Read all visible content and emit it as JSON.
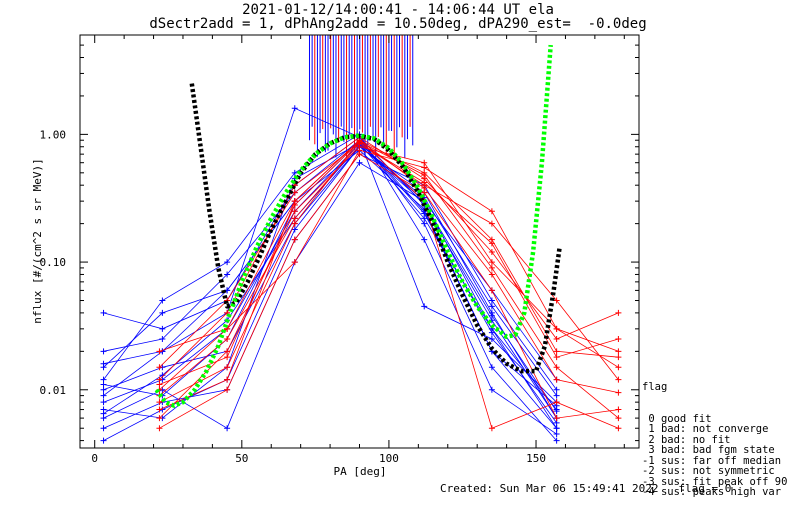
{
  "header": {
    "title_line1": "2021-01-12/14:00:41 - 14:06:44 UT ela",
    "title_line2": "dSectr2add = 1, dPhAng2add = 10.50deg, dPA290_est=  -0.0deg"
  },
  "chart_data": {
    "type": "line",
    "xlabel": "PA [deg]",
    "ylabel": "nflux [#/(cm^2 s sr MeV)]",
    "xlim": [
      -5,
      185
    ],
    "ylim": [
      0.0035,
      6
    ],
    "yscale": "log",
    "xticks": [
      0,
      50,
      100,
      150
    ],
    "yticks": [
      0.01,
      0.1,
      1.0
    ],
    "ytick_labels": [
      "0.01",
      "0.10",
      "1.00"
    ],
    "colors": {
      "blue": "#0000ff",
      "red": "#ff0000",
      "fit_black": "#000000",
      "fit_green": "#00ff00"
    },
    "series": [
      {
        "color": "blue",
        "x": [
          3,
          23,
          45,
          68,
          90,
          112,
          135,
          157
        ],
        "y": [
          0.016,
          0.02,
          0.06,
          0.3,
          0.9,
          0.25,
          0.02,
          0.005
        ]
      },
      {
        "color": "blue",
        "x": [
          3,
          23,
          45,
          68,
          90,
          112,
          135,
          157
        ],
        "y": [
          0.008,
          0.012,
          0.03,
          0.25,
          0.85,
          0.3,
          0.03,
          0.007
        ]
      },
      {
        "color": "blue",
        "x": [
          3,
          23,
          45,
          68,
          90,
          112,
          135,
          157
        ],
        "y": [
          0.04,
          0.03,
          0.05,
          0.4,
          0.95,
          0.2,
          0.015,
          0.004
        ]
      },
      {
        "color": "blue",
        "x": [
          3,
          23,
          45,
          68,
          90,
          112,
          135,
          157
        ],
        "y": [
          0.005,
          0.008,
          0.01,
          0.15,
          0.7,
          0.4,
          0.05,
          0.01
        ]
      },
      {
        "color": "blue",
        "x": [
          3,
          23,
          45,
          68,
          90,
          112,
          135,
          157
        ],
        "y": [
          0.01,
          0.015,
          0.02,
          0.2,
          0.8,
          0.35,
          0.04,
          0.006
        ]
      },
      {
        "color": "blue",
        "x": [
          3,
          23,
          45,
          68,
          90,
          112,
          135,
          157
        ],
        "y": [
          0.012,
          0.05,
          0.1,
          0.5,
          1.0,
          0.15,
          0.01,
          0.0045
        ]
      },
      {
        "color": "blue",
        "x": [
          3,
          23,
          45,
          68,
          90,
          112,
          135,
          157
        ],
        "y": [
          0.006,
          0.01,
          0.005,
          0.1,
          0.6,
          0.3,
          0.06,
          0.012
        ]
      },
      {
        "color": "blue",
        "x": [
          3,
          23,
          45,
          68,
          90,
          112,
          135,
          157
        ],
        "y": [
          0.02,
          0.025,
          0.08,
          0.35,
          0.9,
          0.045,
          0.025,
          0.008
        ]
      },
      {
        "color": "blue",
        "x": [
          3,
          23,
          45,
          68,
          90,
          112,
          135,
          157
        ],
        "y": [
          0.007,
          0.006,
          0.015,
          0.45,
          0.85,
          0.22,
          0.03,
          0.005
        ]
      },
      {
        "color": "blue",
        "x": [
          3,
          23,
          45,
          68,
          90,
          112,
          135,
          157
        ],
        "y": [
          0.009,
          0.02,
          0.04,
          1.6,
          0.95,
          0.28,
          0.035,
          0.006
        ]
      },
      {
        "color": "blue",
        "x": [
          3,
          23,
          45,
          68,
          90,
          112,
          135,
          157
        ],
        "y": [
          0.015,
          0.04,
          0.06,
          0.3,
          0.75,
          0.26,
          0.02,
          0.0075
        ]
      },
      {
        "color": "blue",
        "x": [
          3,
          23,
          45,
          68,
          90,
          112,
          135,
          157
        ],
        "y": [
          0.004,
          0.007,
          0.012,
          0.18,
          0.8,
          0.32,
          0.045,
          0.009
        ]
      },
      {
        "color": "blue",
        "x": [
          3,
          23,
          45,
          68,
          90,
          112,
          135,
          157
        ],
        "y": [
          0.011,
          0.009,
          0.025,
          0.28,
          0.88,
          0.24,
          0.028,
          0.0055
        ]
      },
      {
        "color": "blue",
        "x": [
          3,
          23,
          45,
          68,
          90,
          112,
          135,
          157
        ],
        "y": [
          0.0065,
          0.013,
          0.035,
          0.22,
          0.82,
          0.29,
          0.038,
          0.0068
        ]
      },
      {
        "color": "red",
        "x": [
          22,
          45,
          68,
          90,
          112,
          135,
          157,
          178
        ],
        "y": [
          0.01,
          0.03,
          0.3,
          0.9,
          0.5,
          0.15,
          0.02,
          0.018
        ]
      },
      {
        "color": "red",
        "x": [
          22,
          45,
          68,
          90,
          112,
          135,
          157,
          178
        ],
        "y": [
          0.006,
          0.02,
          0.25,
          0.8,
          0.6,
          0.1,
          0.03,
          0.015
        ]
      },
      {
        "color": "red",
        "x": [
          22,
          45,
          68,
          90,
          112,
          135,
          157,
          178
        ],
        "y": [
          0.015,
          0.05,
          0.35,
          0.85,
          0.4,
          0.2,
          0.05,
          0.012
        ]
      },
      {
        "color": "red",
        "x": [
          22,
          45,
          68,
          90,
          112,
          135,
          157,
          178
        ],
        "y": [
          0.008,
          0.015,
          0.2,
          0.9,
          0.3,
          0.005,
          0.008,
          0.005
        ]
      },
      {
        "color": "red",
        "x": [
          22,
          45,
          68,
          90,
          112,
          135,
          157,
          178
        ],
        "y": [
          0.012,
          0.04,
          0.4,
          0.95,
          0.45,
          0.12,
          0.025,
          0.04
        ]
      },
      {
        "color": "red",
        "x": [
          22,
          45,
          68,
          90,
          112,
          135,
          157,
          178
        ],
        "y": [
          0.005,
          0.01,
          0.15,
          0.7,
          0.35,
          0.06,
          0.006,
          0.007
        ]
      },
      {
        "color": "red",
        "x": [
          22,
          45,
          68,
          90,
          112,
          135,
          157,
          178
        ],
        "y": [
          0.02,
          0.03,
          0.1,
          0.75,
          0.55,
          0.25,
          0.03,
          0.02
        ]
      },
      {
        "color": "red",
        "x": [
          22,
          45,
          68,
          90,
          112,
          135,
          157,
          178
        ],
        "y": [
          0.007,
          0.012,
          0.3,
          0.9,
          0.38,
          0.08,
          0.012,
          0.0095
        ]
      },
      {
        "color": "red",
        "x": [
          22,
          45,
          68,
          90,
          112,
          135,
          157,
          178
        ],
        "y": [
          0.009,
          0.025,
          0.22,
          0.85,
          0.42,
          0.14,
          0.018,
          0.025
        ]
      },
      {
        "color": "red",
        "x": [
          22,
          45,
          68,
          90,
          112,
          135,
          157,
          178
        ],
        "y": [
          0.011,
          0.018,
          0.28,
          0.88,
          0.48,
          0.09,
          0.015,
          0.006
        ]
      }
    ],
    "fits": [
      {
        "color": "fit_black",
        "x": [
          33,
          36,
          39,
          42,
          45,
          48,
          52,
          56,
          60,
          65,
          70,
          75,
          80,
          85,
          90,
          95,
          100,
          105,
          110,
          115,
          120,
          125,
          130,
          135,
          140,
          145,
          150,
          153,
          156,
          158
        ],
        "y": [
          2.5,
          0.8,
          0.25,
          0.09,
          0.045,
          0.048,
          0.07,
          0.11,
          0.18,
          0.3,
          0.5,
          0.7,
          0.85,
          0.95,
          0.97,
          0.92,
          0.75,
          0.55,
          0.35,
          0.2,
          0.1,
          0.055,
          0.032,
          0.021,
          0.016,
          0.014,
          0.014,
          0.022,
          0.06,
          0.13
        ]
      },
      {
        "color": "fit_green",
        "x": [
          21,
          24,
          27,
          30,
          34,
          38,
          42,
          46,
          50,
          55,
          60,
          65,
          70,
          75,
          80,
          85,
          90,
          95,
          100,
          105,
          110,
          115,
          120,
          125,
          130,
          135,
          140,
          143,
          146,
          149,
          152,
          155
        ],
        "y": [
          0.01,
          0.008,
          0.0075,
          0.008,
          0.01,
          0.014,
          0.022,
          0.04,
          0.07,
          0.13,
          0.22,
          0.35,
          0.52,
          0.7,
          0.85,
          0.95,
          0.98,
          0.93,
          0.78,
          0.58,
          0.38,
          0.22,
          0.12,
          0.07,
          0.045,
          0.032,
          0.026,
          0.027,
          0.04,
          0.12,
          0.6,
          5
        ]
      }
    ],
    "spikes": {
      "x_range": [
        73,
        109
      ],
      "y_top": 6
    }
  },
  "flag_legend": {
    "title": "flag",
    "entries": [
      " 0 good fit",
      " 1 bad: not converge",
      " 2 bad: no fit",
      " 3 bad: bad fgm state",
      "-1 sus: far off median",
      "-2 sus: not symmetric",
      "-3 sus: fit peak off 90",
      "-4 sus: peaks high var"
    ]
  },
  "footer": {
    "created": "Created: Sun Mar 06 15:49:41 2022",
    "flag": "flag = 0"
  }
}
